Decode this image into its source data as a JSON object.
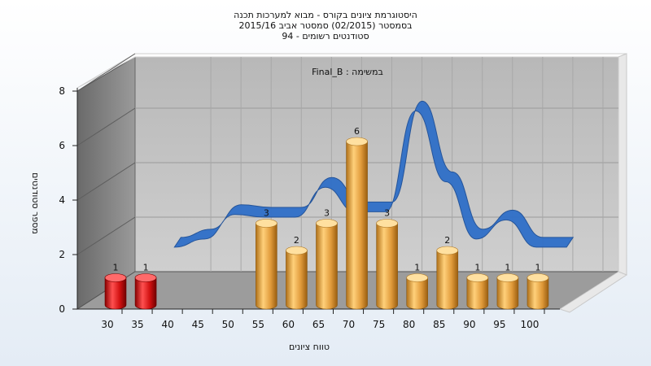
{
  "title_lines": [
    "היסטוגרמת ציונים בקורס - מבוא למערכות תכנה",
    "בסמסטר  (02/2015)  סמסטר אביב 2015/16",
    "סטודנטים רשומים - 94"
  ],
  "chart_data": {
    "type": "bar",
    "subtitle": "במשימה : Final_B",
    "xlabel": "טווח ציונים",
    "ylabel": "מספר סטודנטים",
    "categories": [
      "30",
      "35",
      "40",
      "45",
      "50",
      "55",
      "60",
      "65",
      "70",
      "75",
      "80",
      "85",
      "90",
      "95",
      "100"
    ],
    "values": [
      1,
      1,
      0,
      0,
      0,
      3,
      2,
      3,
      6,
      3,
      1,
      2,
      1,
      1,
      1
    ],
    "failing_categories": [
      "30",
      "35"
    ],
    "ylim": [
      0,
      8
    ],
    "yticks": [
      0,
      2,
      4,
      6,
      8
    ],
    "grid": true,
    "colors": {
      "failing_bar": "#e01010",
      "passing_bar": "#f0b04a",
      "trend_line": "#2f6fc8",
      "wall": "#c0c0c0",
      "side_wall": "#808080",
      "floor": "#9a9a9a"
    },
    "trend": {
      "type": "line",
      "x": [
        "35",
        "40",
        "45",
        "50",
        "55",
        "60",
        "65",
        "70",
        "75",
        "80",
        "85",
        "90",
        "95",
        "100"
      ],
      "values": [
        1.6,
        1.9,
        2.8,
        2.7,
        2.7,
        3.8,
        2.9,
        2.9,
        6.6,
        4.0,
        1.9,
        2.6,
        1.6,
        1.6
      ]
    }
  }
}
